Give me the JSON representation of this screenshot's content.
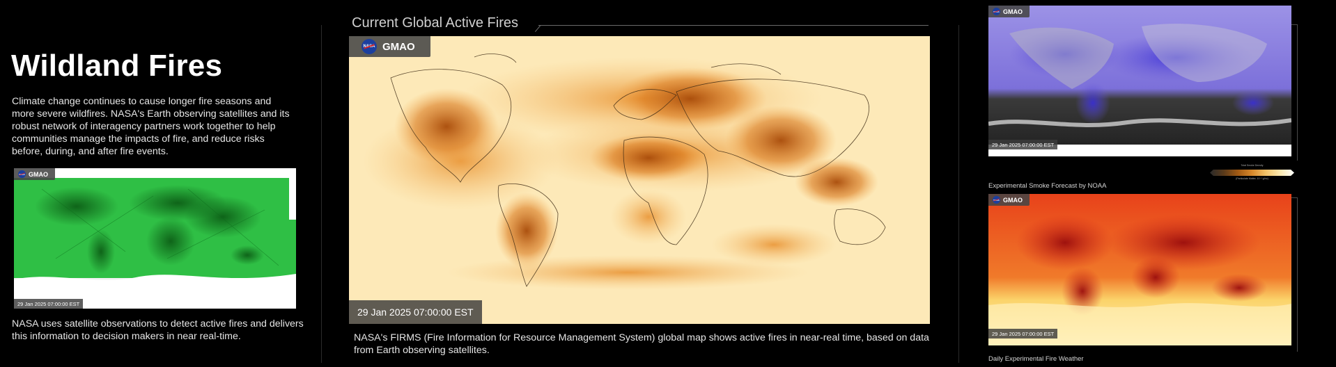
{
  "page": {
    "title": "Wildland Fires",
    "intro": "Climate change continues to cause longer fire seasons and more severe wildfires. NASA's Earth observing satellites and its robust network of interagency partners work together to help communities manage the impacts of fire, and reduce risks before, during, and after fire events."
  },
  "left_map": {
    "brand": "GMAO",
    "timestamp": "29 Jan 2025 07:00:00 EST",
    "caption": "NASA uses satellite observations to detect active fires and delivers this information to decision makers in near real-time."
  },
  "center_map": {
    "section_title": "Current Global Active Fires",
    "brand": "GMAO",
    "timestamp": "29 Jan  2025 07:00:00 EST",
    "caption": "NASA's FIRMS (Fire Information for Resource Management System) global map shows active fires in near-real time, based on data from Earth observing satellites."
  },
  "right_top_map": {
    "brand": "GMAO",
    "timestamp": "29 Jan  2025 07:00:00 EST",
    "caption": "Experimental Smoke Forecast by NOAA",
    "colorbar_title": "Total Smoke Density",
    "colorbar_subtitle": "(Particulate Matter, 10⁻⁶ g/m²)"
  },
  "right_bottom_map": {
    "brand": "GMAO",
    "timestamp": "29 Jan  2025 07:00:00 EST",
    "caption": "Daily Experimental Fire Weather"
  },
  "nasa_logo_text": "NASA",
  "colors": {
    "background": "#000000",
    "fire_map_base": "#fde9b8",
    "fire_map_hot": "#b5540d",
    "left_map_base": "#27b83c",
    "smoke_map_base": "#6a5bd6",
    "fire_weather_base": "#e8421a"
  }
}
